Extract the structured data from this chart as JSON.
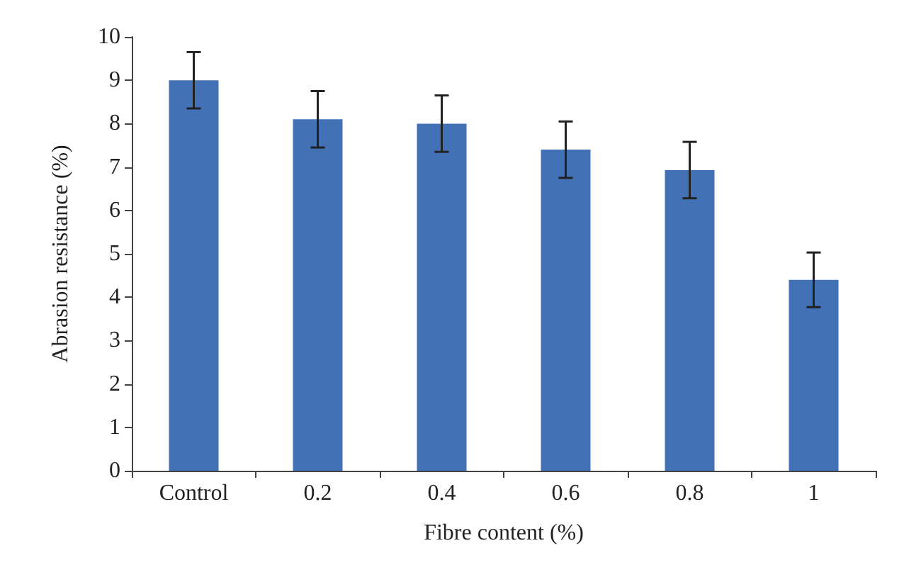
{
  "chart_data": {
    "type": "bar",
    "xlabel": "Fibre content (%)",
    "ylabel": "Abrasion resistance (%)",
    "categories": [
      "Control",
      "0.2",
      "0.4",
      "0.6",
      "0.8",
      "1"
    ],
    "values": [
      9.0,
      8.1,
      8.0,
      7.4,
      6.93,
      4.4
    ],
    "errors": [
      0.65,
      0.65,
      0.65,
      0.65,
      0.65,
      0.63
    ],
    "color": "#4371b6",
    "ylim": [
      0,
      10
    ],
    "yticks": [
      0,
      1,
      2,
      3,
      4,
      5,
      6,
      7,
      8,
      9,
      10
    ],
    "grid": false
  }
}
